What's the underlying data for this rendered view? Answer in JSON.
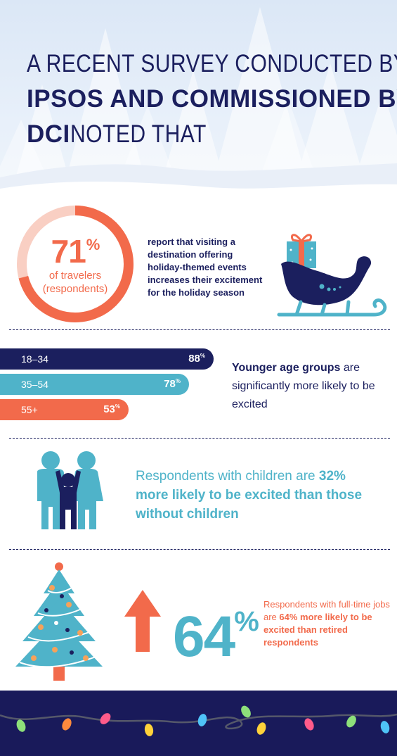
{
  "headline": {
    "line1": "A RECENT SURVEY CONDUCTED BY",
    "line2": "IPSOS AND COMMISSIONED BY",
    "line3_bold": "DCI",
    "line3_rest": " NOTED THAT"
  },
  "stat_travelers": {
    "percent": "71",
    "percent_sign": "%",
    "subtitle_1": "of travelers",
    "subtitle_2": "(respondents)",
    "value_fraction": 0.71,
    "description": "report that visiting a destination offering holiday-themed events increases their excitement for the holiday season"
  },
  "age_groups": [
    {
      "label": "18–34",
      "value": "88",
      "sign": "%",
      "color": "#1b1f5e",
      "fraction": 0.88
    },
    {
      "label": "35–54",
      "value": "78",
      "sign": "%",
      "color": "#4fb3c9",
      "fraction": 0.78
    },
    {
      "label": "55+",
      "value": "53",
      "sign": "%",
      "color": "#f26a4b",
      "fraction": 0.53
    }
  ],
  "age_text": {
    "bold": "Younger age groups",
    "rest": " are significantly more likely to be excited"
  },
  "children_text": {
    "plain": "Respondents with children are ",
    "bold": "32% more likely to be excited than those without children"
  },
  "jobs_stat": {
    "big_value": "64",
    "big_sign": "%",
    "plain": "Respondents with full-time jobs are ",
    "bold": "64% more likely to be excited than retired respondents"
  },
  "colors": {
    "navy": "#1b1f5e",
    "teal": "#4fb3c9",
    "coral": "#f26a4b",
    "peach": "#f9cfc3"
  },
  "icons": [
    "sleigh-icon",
    "family-icon",
    "christmas-tree-icon",
    "up-arrow-icon",
    "string-lights-icon"
  ]
}
